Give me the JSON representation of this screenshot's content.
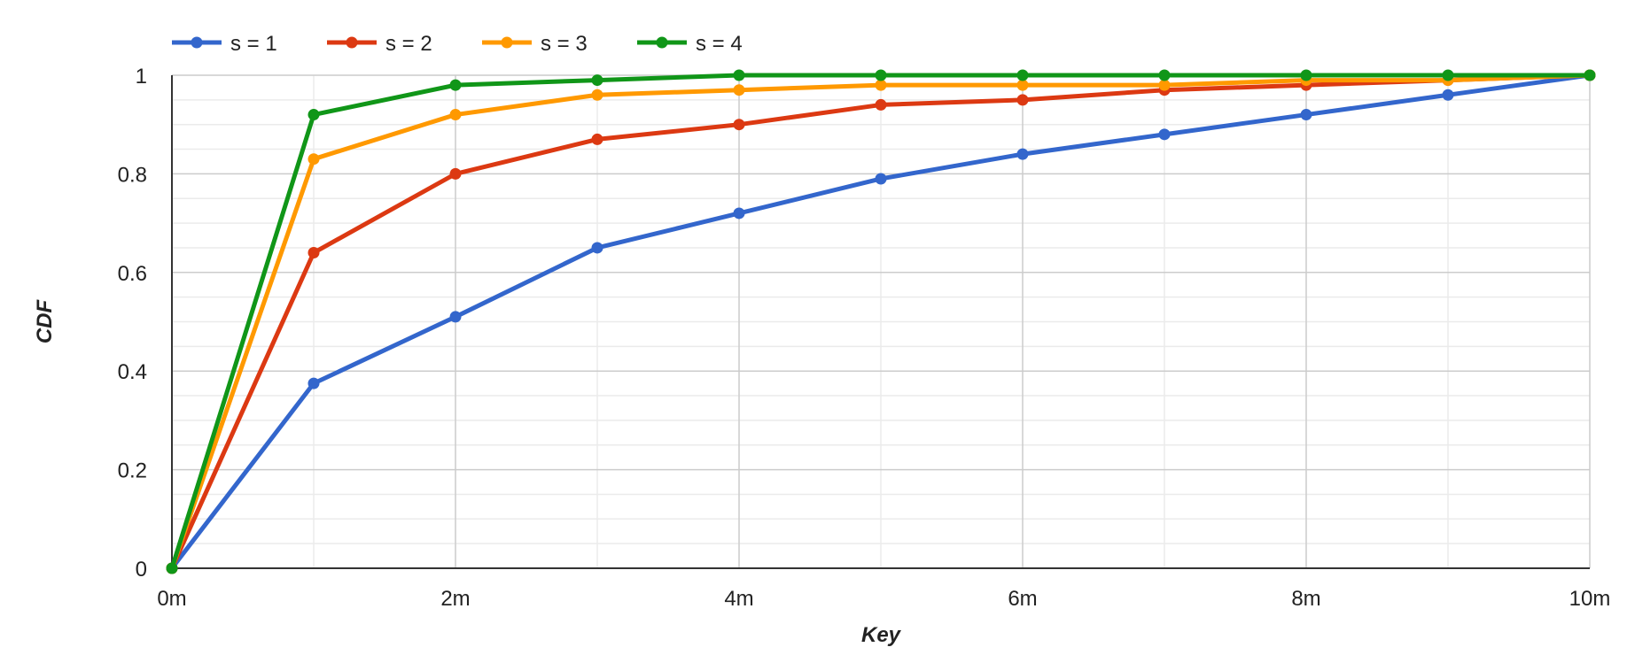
{
  "chart_data": {
    "type": "line",
    "title": "",
    "xlabel": "Key",
    "ylabel": "CDF",
    "x": [
      0,
      1,
      2,
      3,
      4,
      5,
      6,
      7,
      8,
      9,
      10
    ],
    "x_unit": "m",
    "xlim": [
      0,
      10
    ],
    "ylim": [
      0,
      1
    ],
    "x_ticks": [
      0,
      2,
      4,
      6,
      8,
      10
    ],
    "x_tick_labels": [
      "0m",
      "2m",
      "4m",
      "6m",
      "8m",
      "10m"
    ],
    "y_ticks": [
      0,
      0.2,
      0.4,
      0.6,
      0.8,
      1
    ],
    "y_tick_labels": [
      "0",
      "0.2",
      "0.4",
      "0.6",
      "0.8",
      "1"
    ],
    "grid": true,
    "legend_position": "top-left",
    "series": [
      {
        "name": "s = 1",
        "color": "#3366cc",
        "values": [
          0,
          0.375,
          0.51,
          0.65,
          0.72,
          0.79,
          0.84,
          0.88,
          0.92,
          0.96,
          1
        ]
      },
      {
        "name": "s = 2",
        "color": "#dc3912",
        "values": [
          0,
          0.64,
          0.8,
          0.87,
          0.9,
          0.94,
          0.95,
          0.97,
          0.98,
          0.99,
          1
        ]
      },
      {
        "name": "s = 3",
        "color": "#ff9900",
        "values": [
          0,
          0.83,
          0.92,
          0.96,
          0.97,
          0.98,
          0.98,
          0.98,
          0.99,
          0.99,
          1
        ]
      },
      {
        "name": "s = 4",
        "color": "#109618",
        "values": [
          0,
          0.92,
          0.98,
          0.99,
          1.0,
          1.0,
          1.0,
          1.0,
          1.0,
          1.0,
          1
        ]
      }
    ]
  }
}
